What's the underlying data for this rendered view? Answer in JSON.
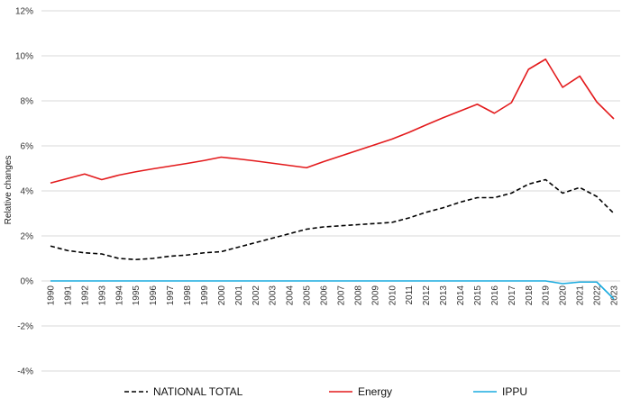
{
  "chart_data": {
    "type": "line",
    "ylabel": "Relative changes",
    "xlabel": "",
    "ylim": [
      -4,
      12
    ],
    "y_ticks": [
      -4,
      -2,
      0,
      2,
      4,
      6,
      8,
      10,
      12
    ],
    "y_tick_labels": [
      "-4%",
      "-2%",
      "0%",
      "2%",
      "4%",
      "6%",
      "8%",
      "10%",
      "12%"
    ],
    "grid": "horizontal",
    "legend_position": "bottom",
    "x": [
      "1990",
      "1991",
      "1992",
      "1993",
      "1994",
      "1995",
      "1996",
      "1997",
      "1998",
      "1999",
      "2000",
      "2001",
      "2002",
      "2003",
      "2004",
      "2005",
      "2006",
      "2007",
      "2008",
      "2009",
      "2010",
      "2011",
      "2012",
      "2013",
      "2014",
      "2015",
      "2016",
      "2017",
      "2018",
      "2019",
      "2020",
      "2021",
      "2022",
      "2023"
    ],
    "series": [
      {
        "name": "NATIONAL TOTAL",
        "color": "#000000",
        "dash": true,
        "values": [
          1.55,
          1.35,
          1.25,
          1.2,
          1.0,
          0.95,
          1.0,
          1.1,
          1.15,
          1.25,
          1.3,
          1.5,
          1.7,
          1.9,
          2.1,
          2.3,
          2.4,
          2.45,
          2.5,
          2.55,
          2.6,
          2.8,
          3.05,
          3.25,
          3.5,
          3.7,
          3.7,
          3.9,
          4.3,
          4.5,
          3.9,
          4.15,
          3.75,
          3.0
        ]
      },
      {
        "name": "Energy",
        "color": "#e31a1c",
        "dash": false,
        "values": [
          4.35,
          4.55,
          4.75,
          4.5,
          4.7,
          4.85,
          4.98,
          5.1,
          5.22,
          5.35,
          5.5,
          5.42,
          5.33,
          5.23,
          5.13,
          5.03,
          5.3,
          5.55,
          5.8,
          6.05,
          6.3,
          6.6,
          6.93,
          7.25,
          7.55,
          7.85,
          7.45,
          7.92,
          9.4,
          9.85,
          8.6,
          9.1,
          7.95,
          7.2
        ]
      },
      {
        "name": "IPPU",
        "color": "#1aabdf",
        "dash": false,
        "values": [
          0,
          0,
          0,
          0,
          0,
          0,
          0,
          0,
          0,
          0,
          0,
          0,
          0,
          0,
          0,
          0,
          0,
          0,
          0,
          0,
          0,
          0,
          0,
          0,
          0,
          0,
          0,
          0,
          0,
          0,
          -0.12,
          -0.05,
          -0.05,
          -0.8
        ]
      }
    ]
  }
}
